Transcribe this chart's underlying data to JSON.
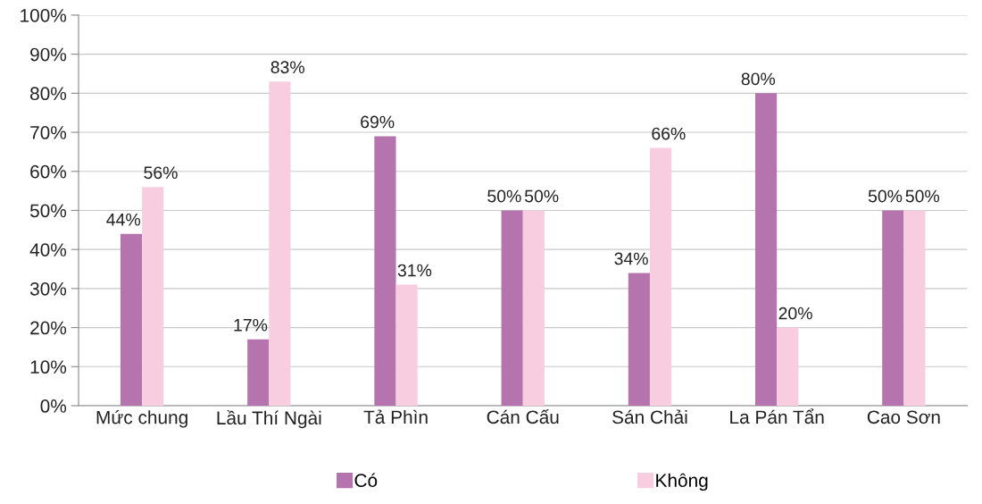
{
  "chart_data": {
    "type": "bar",
    "categories": [
      "Mức chung",
      "Lầu Thí Ngài",
      "Tả Phìn",
      "Cán Cấu",
      "Sán Chải",
      "La Pán Tẩn",
      "Cao Sơn"
    ],
    "series": [
      {
        "name": "Có",
        "color": "#b674ae",
        "values": [
          44,
          17,
          69,
          50,
          34,
          80,
          50
        ],
        "value_labels": [
          "44%",
          "17%",
          "69%",
          "50%",
          "34%",
          "80%",
          "50%"
        ]
      },
      {
        "name": "Không",
        "color": "#f9cde0",
        "values": [
          56,
          83,
          31,
          50,
          66,
          20,
          50
        ],
        "value_labels": [
          "56%",
          "83%",
          "31%",
          "50%",
          "66%",
          "20%",
          "50%"
        ]
      }
    ],
    "ylim": [
      0,
      100
    ],
    "yticks": [
      {
        "value": 0,
        "label": "0%"
      },
      {
        "value": 10,
        "label": "10%"
      },
      {
        "value": 20,
        "label": "20%"
      },
      {
        "value": 30,
        "label": "30%"
      },
      {
        "value": 40,
        "label": "40%"
      },
      {
        "value": 50,
        "label": "50%"
      },
      {
        "value": 60,
        "label": "60%"
      },
      {
        "value": 70,
        "label": "70%"
      },
      {
        "value": 80,
        "label": "80%"
      },
      {
        "value": 90,
        "label": "90%"
      },
      {
        "value": 100,
        "label": "100%"
      }
    ],
    "grid": "y",
    "legend": "bottom"
  }
}
